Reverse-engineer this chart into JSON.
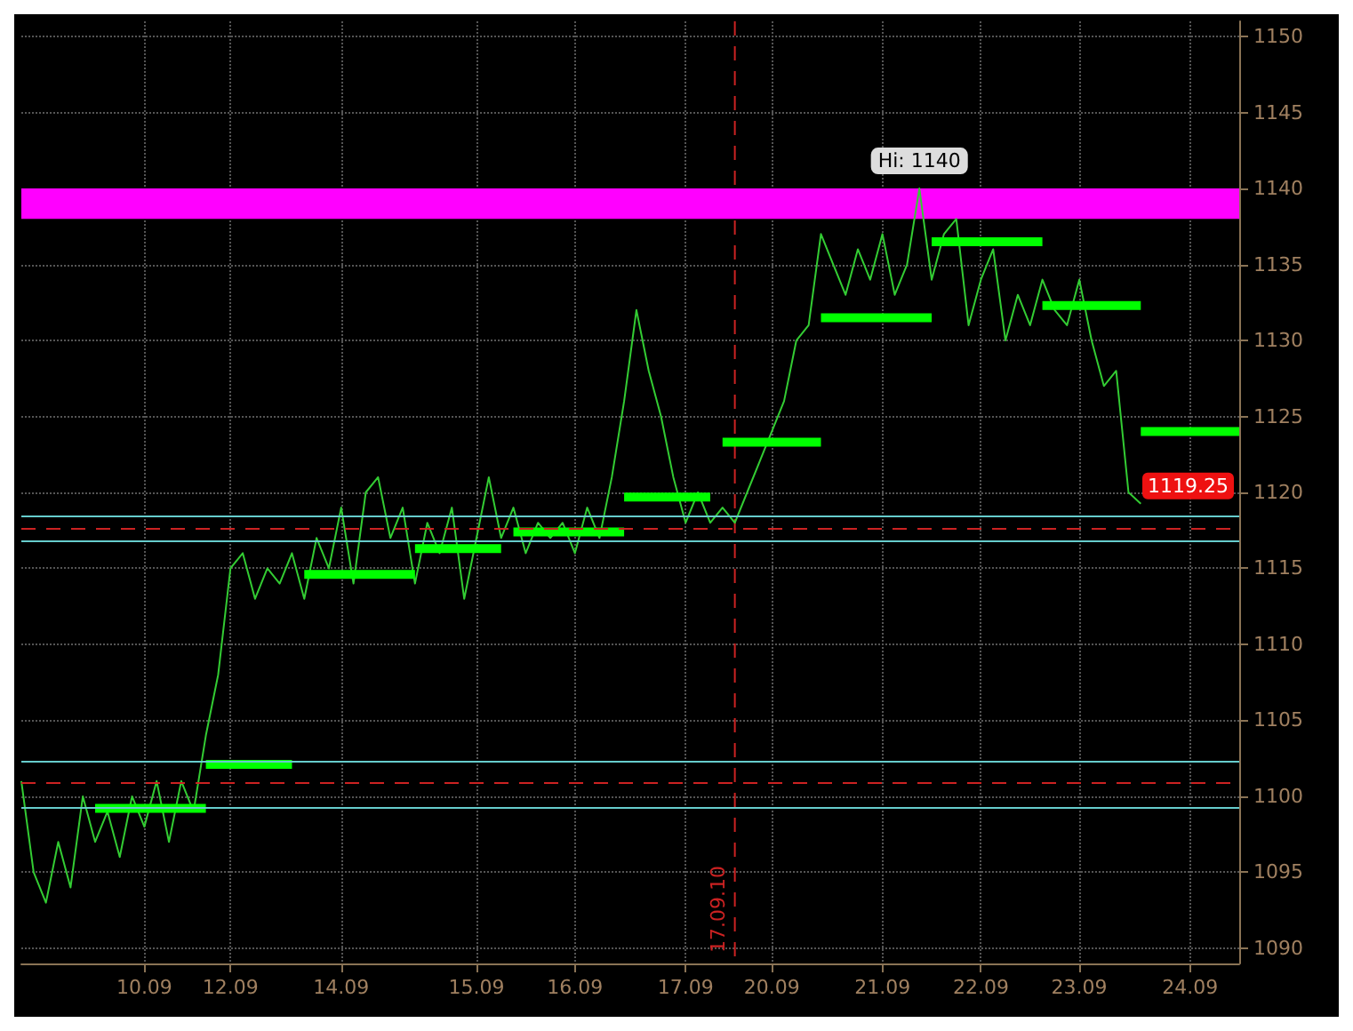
{
  "chart_data": {
    "type": "line",
    "categories": [
      null,
      null,
      null,
      null,
      null,
      null,
      null,
      null,
      null,
      null,
      "10.09",
      null,
      null,
      null,
      null,
      null,
      null,
      "12.09",
      null,
      null,
      null,
      null,
      null,
      null,
      null,
      null,
      "14.09",
      null,
      null,
      null,
      null,
      null,
      null,
      null,
      null,
      null,
      null,
      "15.09",
      null,
      null,
      null,
      null,
      null,
      null,
      null,
      "16.09",
      null,
      null,
      null,
      null,
      null,
      null,
      null,
      null,
      "17.09",
      null,
      null,
      null,
      null,
      null,
      null,
      "20.09",
      null,
      null,
      null,
      null,
      null,
      null,
      null,
      null,
      "21.09",
      null,
      null,
      null,
      null,
      null,
      null,
      null,
      "22.09",
      null,
      null,
      null,
      null,
      null,
      null,
      null,
      "23.09",
      null,
      null,
      null,
      null,
      null,
      null,
      null,
      null,
      "24.09",
      null,
      null,
      null,
      null
    ],
    "ylim": [
      1089,
      1151
    ],
    "yticks": [
      1090,
      1095,
      1100,
      1105,
      1110,
      1115,
      1120,
      1125,
      1130,
      1135,
      1140,
      1145,
      1150
    ],
    "grid": true,
    "marker": "none",
    "line_style": "solid",
    "series": [
      {
        "color": "#33cc33",
        "values": [
          1101,
          1095,
          1093,
          1097,
          1094,
          1100,
          1097,
          1099,
          1096,
          1100,
          1098,
          1101,
          1097,
          1101,
          1099,
          1104,
          1108,
          1115,
          1116,
          1113,
          1115,
          1114,
          1116,
          1113,
          1117,
          1115,
          1119,
          1114,
          1120,
          1121,
          1117,
          1119,
          1114,
          1118,
          1116,
          1119,
          1113,
          1117,
          1121,
          1117,
          1119,
          1116,
          1118,
          1117,
          1118,
          1116,
          1119,
          1117,
          1121,
          1126,
          1132,
          1128,
          1125,
          1121,
          1118,
          1120,
          1118,
          1119,
          1118,
          1120,
          1122,
          1124,
          1126,
          1130,
          1131,
          1137,
          1135,
          1133,
          1136,
          1134,
          1137,
          1133,
          1135,
          1140,
          1134,
          1137,
          1138,
          1131,
          1134,
          1136,
          1130,
          1133,
          1131,
          1134,
          1132,
          1131,
          1134,
          1130,
          1127,
          1128,
          1120,
          1119.25,
          null,
          null,
          null,
          null,
          null,
          null,
          null,
          null
        ]
      },
      {
        "color": "#00ff00",
        "values": [
          null,
          null,
          null,
          null,
          null,
          null,
          1099.2,
          1099.2,
          1099.2,
          1099.2,
          1099.2,
          1099.2,
          1099.2,
          1099.2,
          1099.2,
          1099.2,
          null,
          null,
          null,
          null,
          null,
          null,
          null,
          1114.6,
          1114.6,
          1114.6,
          1114.6,
          1114.6,
          1114.6,
          1114.6,
          1114.6,
          1114.6,
          1114.6,
          null,
          null,
          null,
          null,
          null,
          null,
          null,
          1117.4,
          1117.4,
          1117.4,
          1117.4,
          1117.4,
          1117.4,
          1117.4,
          1117.4,
          1117.4,
          1117.4,
          null,
          null,
          null,
          null,
          null,
          null,
          null,
          1123.3,
          1123.3,
          1123.3,
          1123.3,
          1123.3,
          1123.3,
          1123.3,
          1123.3,
          1123.3,
          null,
          null,
          null,
          null,
          null,
          null,
          null,
          null,
          1136.5,
          1136.5,
          1136.5,
          1136.5,
          1136.5,
          1136.5,
          1136.5,
          1136.5,
          1136.5,
          1136.5,
          null,
          null,
          null,
          null,
          null,
          null,
          null,
          1124,
          1124,
          1124,
          1124,
          1124,
          1124,
          1124,
          1124,
          1124
        ]
      },
      {
        "color": "#00ff00",
        "values": [
          null,
          null,
          null,
          null,
          null,
          null,
          null,
          null,
          null,
          null,
          null,
          null,
          null,
          null,
          null,
          1102.1,
          1102.1,
          1102.1,
          1102.1,
          1102.1,
          1102.1,
          1102.1,
          1102.1,
          null,
          null,
          null,
          null,
          null,
          null,
          null,
          null,
          null,
          1116.3,
          1116.3,
          1116.3,
          1116.3,
          1116.3,
          1116.3,
          1116.3,
          1116.3,
          null,
          null,
          null,
          null,
          null,
          null,
          null,
          null,
          null,
          1119.7,
          1119.7,
          1119.7,
          1119.7,
          1119.7,
          1119.7,
          1119.7,
          1119.7,
          null,
          null,
          null,
          null,
          null,
          null,
          null,
          null,
          1131.5,
          1131.5,
          1131.5,
          1131.5,
          1131.5,
          1131.5,
          1131.5,
          1131.5,
          1131.5,
          1131.5,
          null,
          null,
          null,
          null,
          null,
          null,
          null,
          null,
          1132.3,
          1132.3,
          1132.3,
          1132.3,
          1132.3,
          1132.3,
          1132.3,
          1132.3,
          1132.3,
          null,
          null,
          null,
          null,
          null,
          null,
          null,
          null
        ]
      }
    ],
    "ref_lines": [
      {
        "axis": "y",
        "value": 1118.5,
        "color": "#66cccc",
        "line_style": "solid"
      },
      {
        "axis": "y",
        "value": 1117.6,
        "color": "#cc2222",
        "line_style": "dashed"
      },
      {
        "axis": "y",
        "value": 1116.8,
        "color": "#66cccc",
        "line_style": "solid"
      },
      {
        "axis": "y",
        "value": 1102.3,
        "color": "#66cccc",
        "line_style": "solid"
      },
      {
        "axis": "y",
        "value": 1100.9,
        "color": "#cc2222",
        "line_style": "dashed"
      },
      {
        "axis": "y",
        "value": 1099.3,
        "color": "#66cccc",
        "line_style": "solid"
      }
    ],
    "bands": [
      {
        "axis": "y",
        "from": 1138,
        "to": 1140,
        "color": "#ff00ff"
      }
    ],
    "annotations": [
      {
        "text": "Hi: 1140",
        "y": 1140
      },
      "1119.25",
      "17.09.10"
    ]
  }
}
